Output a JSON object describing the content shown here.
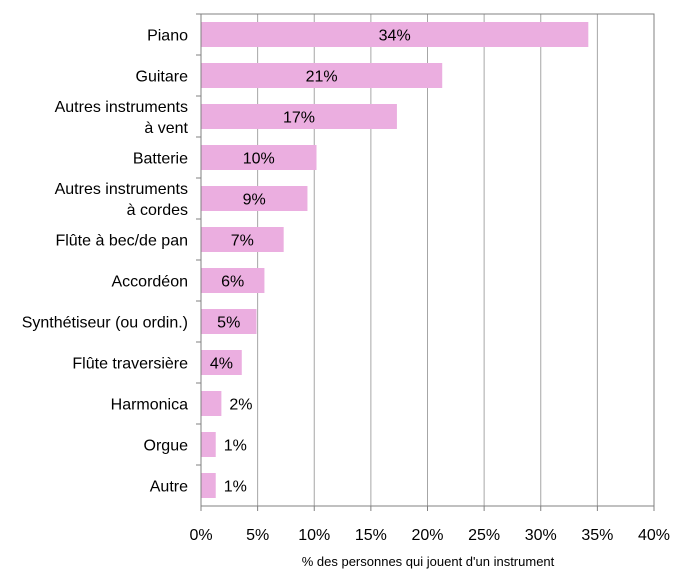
{
  "chart_data": {
    "type": "bar",
    "orientation": "horizontal",
    "categories": [
      "Piano",
      "Guitare",
      "Autres instruments\nà vent",
      "Batterie",
      "Autres instruments\nà cordes",
      "Flûte à bec/de pan",
      "Accordéon",
      "Synthétiseur (ou ordin.)",
      "Flûte traversière",
      "Harmonica",
      "Orgue",
      "Autre"
    ],
    "values": [
      34.2,
      21.3,
      17.3,
      10.2,
      9.4,
      7.3,
      5.6,
      4.9,
      3.6,
      1.8,
      1.3,
      1.3
    ],
    "data_labels": [
      "34%",
      "21%",
      "17%",
      "10%",
      "9%",
      "7%",
      "6%",
      "5%",
      "4%",
      "2%",
      "1%",
      "1%"
    ],
    "xlim": [
      0,
      40
    ],
    "xticks": [
      0,
      5,
      10,
      15,
      20,
      25,
      30,
      35,
      40
    ],
    "xtick_labels": [
      "0%",
      "5%",
      "10%",
      "15%",
      "20%",
      "25%",
      "30%",
      "35%",
      "40%"
    ],
    "xlabel": "% des personnes qui jouent d'un instrument",
    "ylabel": "",
    "title": "",
    "grid": true,
    "colors": {
      "bar": "#ebaee0",
      "grid": "#a6a6a6",
      "frame": "#808080",
      "text": "#000000"
    }
  }
}
